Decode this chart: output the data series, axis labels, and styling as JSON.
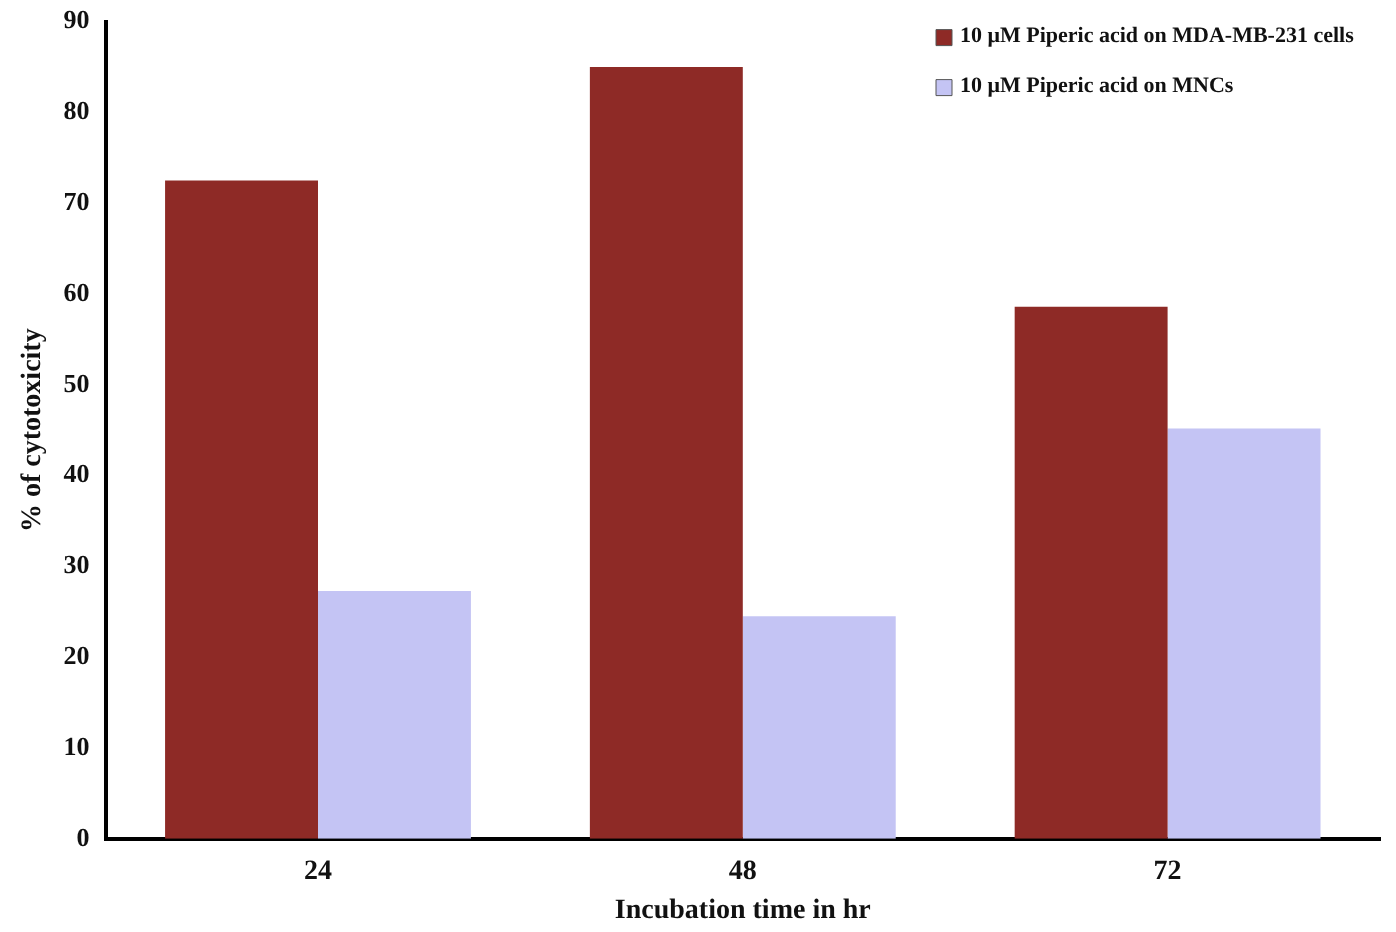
{
  "chart_data": {
    "type": "bar",
    "xlabel": "Incubation time in hr",
    "ylabel": "% of cytotoxicity",
    "categories": [
      "24",
      "48",
      "72"
    ],
    "series": [
      {
        "name": "10 μM Piperic acid on MDA-MB-231 cells",
        "color": "#8e2a26",
        "values": [
          72.5,
          85,
          58.6
        ]
      },
      {
        "name": "10 μM Piperic acid on MNCs",
        "color": "#c4c4f4",
        "values": [
          27.3,
          24.5,
          45.2
        ]
      }
    ],
    "ylim": [
      0,
      90
    ],
    "yticks": [
      0,
      10,
      20,
      30,
      40,
      50,
      60,
      70,
      80,
      90
    ],
    "grid": false,
    "legend": "top right"
  }
}
